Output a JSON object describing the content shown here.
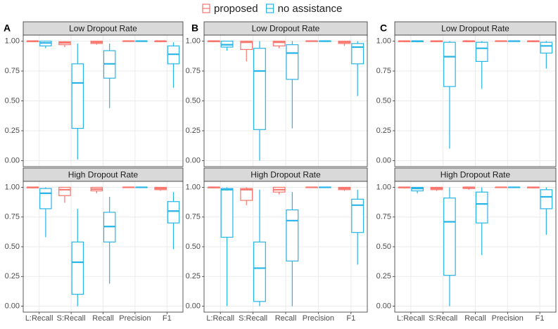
{
  "legend": [
    {
      "name": "proposed",
      "color": "#F8766D"
    },
    {
      "name": "no assistance",
      "color": "#28B4E6"
    }
  ],
  "chart_data": [
    {
      "type": "box",
      "label": "A",
      "categories": [
        "L:Recall",
        "S:Recall",
        "Recall",
        "Precision",
        "F1"
      ],
      "ylim": [
        -0.05,
        1.05
      ],
      "yticks": [
        {
          "value": 0,
          "label": "0.00"
        },
        {
          "value": 0.25,
          "label": "0.25"
        },
        {
          "value": 0.5,
          "label": "0.50"
        },
        {
          "value": 0.75,
          "label": "0.75"
        },
        {
          "value": 1,
          "label": "1.00"
        }
      ],
      "panels": [
        {
          "title": "Low Dropout Rate",
          "series": [
            {
              "values": [
                {
                  "min": 0.99,
                  "q1": 0.995,
                  "median": 1,
                  "q3": 1,
                  "max": 1
                },
                {
                  "min": 0.95,
                  "q1": 0.97,
                  "median": 0.985,
                  "q3": 0.995,
                  "max": 1
                },
                {
                  "min": 0.97,
                  "q1": 0.98,
                  "median": 0.99,
                  "q3": 1,
                  "max": 1
                },
                {
                  "min": 1,
                  "q1": 1,
                  "median": 1,
                  "q3": 1,
                  "max": 1
                },
                {
                  "min": 0.99,
                  "q1": 0.995,
                  "median": 1,
                  "q3": 1,
                  "max": 1
                }
              ]
            },
            {
              "values": [
                {
                  "min": 0.94,
                  "q1": 0.96,
                  "median": 0.985,
                  "q3": 1,
                  "max": 1
                },
                {
                  "min": 0.01,
                  "q1": 0.27,
                  "median": 0.65,
                  "q3": 0.81,
                  "max": 0.98
                },
                {
                  "min": 0.44,
                  "q1": 0.69,
                  "median": 0.81,
                  "q3": 0.92,
                  "max": 0.98
                },
                {
                  "min": 1,
                  "q1": 1,
                  "median": 1,
                  "q3": 1,
                  "max": 1
                },
                {
                  "min": 0.61,
                  "q1": 0.81,
                  "median": 0.89,
                  "q3": 0.96,
                  "max": 0.99
                }
              ]
            }
          ]
        },
        {
          "title": "High Dropout Rate",
          "series": [
            {
              "values": [
                {
                  "min": 0.99,
                  "q1": 0.995,
                  "median": 1,
                  "q3": 1,
                  "max": 1
                },
                {
                  "min": 0.87,
                  "q1": 0.93,
                  "median": 0.98,
                  "q3": 1,
                  "max": 1
                },
                {
                  "min": 0.95,
                  "q1": 0.97,
                  "median": 0.985,
                  "q3": 1,
                  "max": 1
                },
                {
                  "min": 1,
                  "q1": 1,
                  "median": 1,
                  "q3": 1,
                  "max": 1
                },
                {
                  "min": 0.97,
                  "q1": 0.98,
                  "median": 0.99,
                  "q3": 1,
                  "max": 1
                }
              ]
            },
            {
              "values": [
                {
                  "min": 0.58,
                  "q1": 0.82,
                  "median": 0.95,
                  "q3": 0.99,
                  "max": 1
                },
                {
                  "min": 0,
                  "q1": 0.1,
                  "median": 0.37,
                  "q3": 0.54,
                  "max": 0.82
                },
                {
                  "min": 0.19,
                  "q1": 0.54,
                  "median": 0.67,
                  "q3": 0.79,
                  "max": 0.92
                },
                {
                  "min": 1,
                  "q1": 1,
                  "median": 1,
                  "q3": 1,
                  "max": 1
                },
                {
                  "min": 0.48,
                  "q1": 0.7,
                  "median": 0.8,
                  "q3": 0.88,
                  "max": 0.96
                }
              ]
            }
          ]
        }
      ]
    },
    {
      "type": "box",
      "label": "B",
      "categories": [
        "L:Recall",
        "S:Recall",
        "Recall",
        "Precision",
        "F1"
      ],
      "ylim": [
        -0.05,
        1.05
      ],
      "yticks": [
        {
          "value": 0,
          "label": "0.00"
        },
        {
          "value": 0.25,
          "label": "0.25"
        },
        {
          "value": 0.5,
          "label": "0.50"
        },
        {
          "value": 0.75,
          "label": "0.75"
        },
        {
          "value": 1,
          "label": "1.00"
        }
      ],
      "panels": [
        {
          "title": "Low Dropout Rate",
          "series": [
            {
              "values": [
                {
                  "min": 0.99,
                  "q1": 0.995,
                  "median": 1,
                  "q3": 1,
                  "max": 1
                },
                {
                  "min": 0.83,
                  "q1": 0.93,
                  "median": 0.99,
                  "q3": 1,
                  "max": 1
                },
                {
                  "min": 0.94,
                  "q1": 0.96,
                  "median": 0.99,
                  "q3": 1,
                  "max": 1
                },
                {
                  "min": 1,
                  "q1": 1,
                  "median": 1,
                  "q3": 1,
                  "max": 1
                },
                {
                  "min": 0.96,
                  "q1": 0.98,
                  "median": 0.99,
                  "q3": 1,
                  "max": 1
                }
              ]
            },
            {
              "values": [
                {
                  "min": 0.92,
                  "q1": 0.95,
                  "median": 0.97,
                  "q3": 1,
                  "max": 1
                },
                {
                  "min": 0,
                  "q1": 0.26,
                  "median": 0.75,
                  "q3": 0.94,
                  "max": 1
                },
                {
                  "min": 0.27,
                  "q1": 0.68,
                  "median": 0.9,
                  "q3": 0.97,
                  "max": 1
                },
                {
                  "min": 1,
                  "q1": 1,
                  "median": 1,
                  "q3": 1,
                  "max": 1
                },
                {
                  "min": 0.54,
                  "q1": 0.81,
                  "median": 0.95,
                  "q3": 0.98,
                  "max": 1
                }
              ]
            }
          ]
        },
        {
          "title": "High Dropout Rate",
          "series": [
            {
              "values": [
                {
                  "min": 0.99,
                  "q1": 0.995,
                  "median": 1,
                  "q3": 1,
                  "max": 1
                },
                {
                  "min": 0.85,
                  "q1": 0.89,
                  "median": 0.98,
                  "q3": 0.99,
                  "max": 1
                },
                {
                  "min": 0.94,
                  "q1": 0.96,
                  "median": 0.98,
                  "q3": 1,
                  "max": 1
                },
                {
                  "min": 1,
                  "q1": 1,
                  "median": 1,
                  "q3": 1,
                  "max": 1
                },
                {
                  "min": 0.97,
                  "q1": 0.98,
                  "median": 0.99,
                  "q3": 1,
                  "max": 1
                }
              ]
            },
            {
              "values": [
                {
                  "min": 0,
                  "q1": 0.58,
                  "median": 0.98,
                  "q3": 0.99,
                  "max": 1
                },
                {
                  "min": 0,
                  "q1": 0.04,
                  "median": 0.32,
                  "q3": 0.54,
                  "max": 0.98
                },
                {
                  "min": 0,
                  "q1": 0.38,
                  "median": 0.72,
                  "q3": 0.81,
                  "max": 0.96
                },
                {
                  "min": 1,
                  "q1": 1,
                  "median": 1,
                  "q3": 1,
                  "max": 1
                },
                {
                  "min": 0.35,
                  "q1": 0.62,
                  "median": 0.85,
                  "q3": 0.9,
                  "max": 0.98
                }
              ]
            }
          ]
        }
      ]
    },
    {
      "type": "box",
      "label": "C",
      "categories": [
        "L:Recall",
        "S:Recall",
        "Recall",
        "Precision",
        "F1"
      ],
      "ylim": [
        -0.05,
        1.05
      ],
      "yticks": [
        {
          "value": 0,
          "label": "0.00"
        },
        {
          "value": 0.25,
          "label": "0.25"
        },
        {
          "value": 0.5,
          "label": "0.50"
        },
        {
          "value": 0.75,
          "label": "0.75"
        },
        {
          "value": 1,
          "label": "1.00"
        }
      ],
      "panels": [
        {
          "title": "Low Dropout Rate",
          "series": [
            {
              "values": [
                {
                  "min": 0.99,
                  "q1": 0.995,
                  "median": 1,
                  "q3": 1,
                  "max": 1
                },
                {
                  "min": 0.99,
                  "q1": 0.995,
                  "median": 1,
                  "q3": 1,
                  "max": 1
                },
                {
                  "min": 0.99,
                  "q1": 0.995,
                  "median": 1,
                  "q3": 1,
                  "max": 1
                },
                {
                  "min": 1,
                  "q1": 1,
                  "median": 1,
                  "q3": 1,
                  "max": 1
                },
                {
                  "min": 0.99,
                  "q1": 0.995,
                  "median": 1,
                  "q3": 1,
                  "max": 1
                }
              ]
            },
            {
              "values": [
                {
                  "min": 0.99,
                  "q1": 0.995,
                  "median": 1,
                  "q3": 1,
                  "max": 1
                },
                {
                  "min": 0.1,
                  "q1": 0.62,
                  "median": 0.87,
                  "q3": 0.99,
                  "max": 1
                },
                {
                  "min": 0.6,
                  "q1": 0.83,
                  "median": 0.94,
                  "q3": 0.99,
                  "max": 1
                },
                {
                  "min": 1,
                  "q1": 1,
                  "median": 1,
                  "q3": 1,
                  "max": 1
                },
                {
                  "min": 0.77,
                  "q1": 0.9,
                  "median": 0.96,
                  "q3": 0.99,
                  "max": 1
                }
              ]
            }
          ]
        },
        {
          "title": "High Dropout Rate",
          "series": [
            {
              "values": [
                {
                  "min": 0.99,
                  "q1": 0.995,
                  "median": 1,
                  "q3": 1,
                  "max": 1
                },
                {
                  "min": 0.97,
                  "q1": 0.98,
                  "median": 0.99,
                  "q3": 1,
                  "max": 1
                },
                {
                  "min": 0.98,
                  "q1": 0.99,
                  "median": 1,
                  "q3": 1,
                  "max": 1
                },
                {
                  "min": 1,
                  "q1": 1,
                  "median": 1,
                  "q3": 1,
                  "max": 1
                },
                {
                  "min": 0.99,
                  "q1": 0.995,
                  "median": 1,
                  "q3": 1,
                  "max": 1
                }
              ]
            },
            {
              "values": [
                {
                  "min": 0.95,
                  "q1": 0.97,
                  "median": 0.99,
                  "q3": 1,
                  "max": 1
                },
                {
                  "min": 0,
                  "q1": 0.26,
                  "median": 0.71,
                  "q3": 0.91,
                  "max": 1
                },
                {
                  "min": 0.43,
                  "q1": 0.7,
                  "median": 0.86,
                  "q3": 0.96,
                  "max": 1
                },
                {
                  "min": 1,
                  "q1": 1,
                  "median": 1,
                  "q3": 1,
                  "max": 1
                },
                {
                  "min": 0.6,
                  "q1": 0.82,
                  "median": 0.92,
                  "q3": 0.98,
                  "max": 1
                }
              ]
            }
          ]
        }
      ]
    }
  ]
}
